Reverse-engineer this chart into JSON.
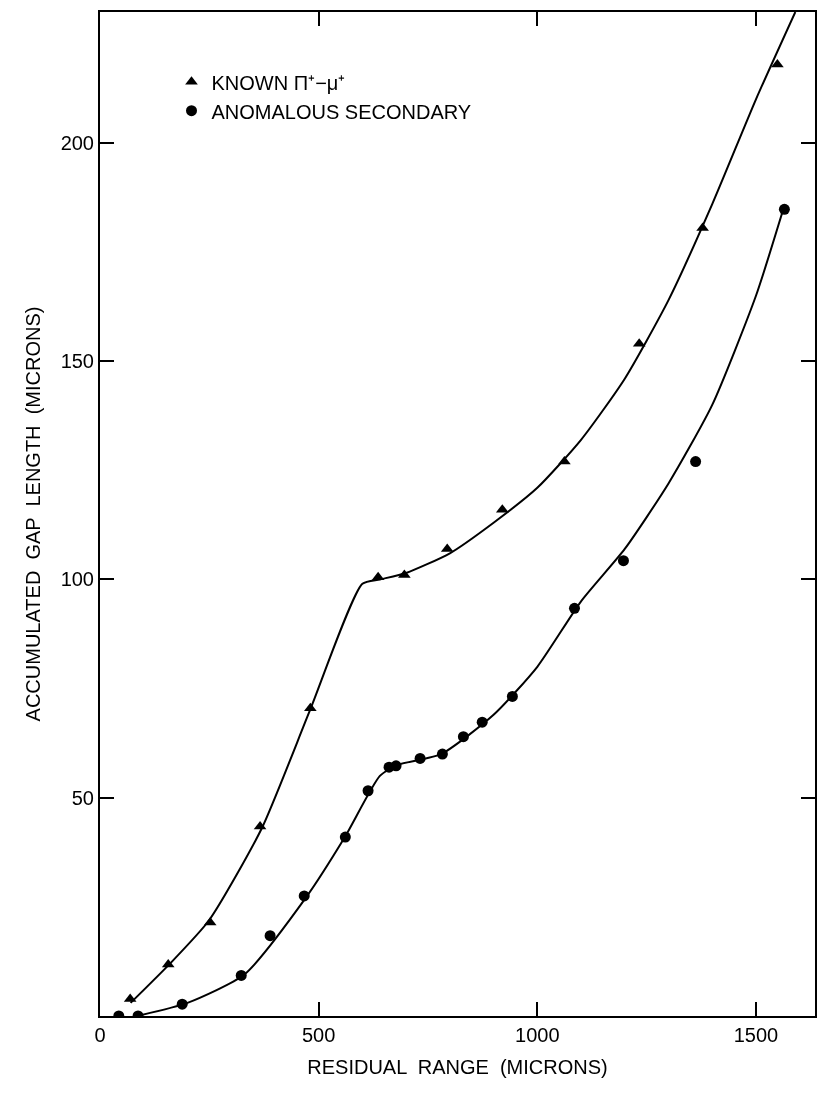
{
  "chart_data": {
    "type": "scatter",
    "xlabel": "RESIDUAL  RANGE  (MICRONS)",
    "ylabel": "ACCUMULATED  GAP  LENGTH  (MICRONS)",
    "xlim": [
      0,
      1635
    ],
    "ylim": [
      0,
      230
    ],
    "xticks": [
      0,
      500,
      1000,
      1500
    ],
    "yticks": [
      50,
      100,
      150,
      200
    ],
    "legend": "top left",
    "series": [
      {
        "name": "KNOWN Π⁺−μ⁺",
        "marker": "triangle",
        "color": "#000000",
        "x": [
          69,
          156,
          252,
          366,
          481,
          636,
          696,
          794,
          920,
          1062,
          1233,
          1378,
          1549
        ],
        "values": [
          3.9,
          11.8,
          21.4,
          43.4,
          70.5,
          100.5,
          101,
          107,
          116,
          127,
          154,
          180.5,
          218
        ]
      },
      {
        "name": "ANOMALOUS SECONDARY",
        "marker": "circle",
        "color": "#000000",
        "x": [
          43,
          87,
          188,
          323,
          389,
          467,
          561,
          613,
          661,
          677,
          732,
          783,
          831,
          874,
          943,
          1085,
          1197,
          1362,
          1565
        ],
        "values": [
          0,
          0,
          2.7,
          9.3,
          18.4,
          27.5,
          41,
          51.6,
          57,
          57.3,
          59,
          60,
          64,
          67.3,
          73.2,
          93.4,
          104.3,
          127,
          184.8
        ]
      },
      {
        "type": "line",
        "marker": "none",
        "line_style": "solid",
        "color": "#000000",
        "x": [
          70,
          160,
          250,
          370,
          480,
          600,
          640,
          700,
          800,
          900,
          1000,
          1100,
          1200,
          1300,
          1400,
          1500,
          1590
        ],
        "values": [
          3,
          12,
          22,
          43,
          70,
          99,
          100,
          101.5,
          106,
          113,
          121,
          132,
          146,
          164,
          186,
          210,
          230
        ]
      },
      {
        "type": "line",
        "marker": "none",
        "line_style": "solid",
        "color": "#000000",
        "x": [
          85,
          200,
          330,
          470,
          560,
          640,
          680,
          780,
          900,
          1000,
          1100,
          1200,
          1300,
          1400,
          1500,
          1560
        ],
        "values": [
          0,
          3,
          9.5,
          27,
          41,
          55,
          57.5,
          60,
          69,
          80,
          95,
          107,
          122,
          140,
          165,
          184
        ]
      }
    ]
  }
}
